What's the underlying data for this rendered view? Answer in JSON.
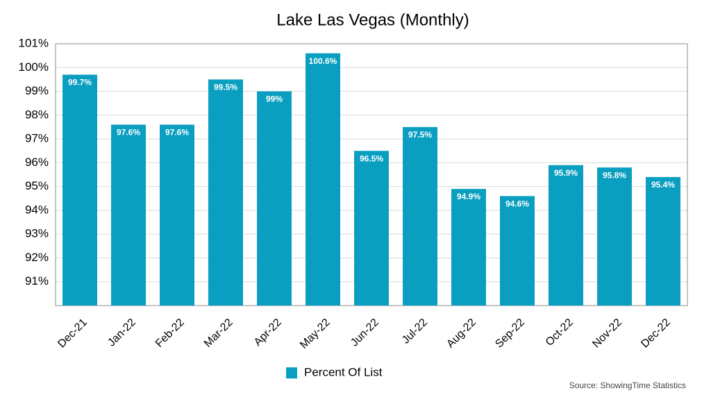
{
  "chart_data": {
    "type": "bar",
    "title": "Lake Las Vegas (Monthly)",
    "categories": [
      "Dec-21",
      "Jan-22",
      "Feb-22",
      "Mar-22",
      "Apr-22",
      "May-22",
      "Jun-22",
      "Jul-22",
      "Aug-22",
      "Sep-22",
      "Oct-22",
      "Nov-22",
      "Dec-22"
    ],
    "series": [
      {
        "name": "Percent Of List",
        "color": "#0a9fc1",
        "values": [
          99.7,
          97.6,
          97.6,
          99.5,
          99,
          100.6,
          96.5,
          97.5,
          94.9,
          94.6,
          95.9,
          95.8,
          95.4
        ],
        "value_labels": [
          "99.7%",
          "97.6%",
          "97.6%",
          "99.5%",
          "99%",
          "100.6%",
          "96.5%",
          "97.5%",
          "94.9%",
          "94.6%",
          "95.9%",
          "95.8%",
          "95.4%"
        ]
      }
    ],
    "ylim": [
      90,
      101
    ],
    "yticks": [
      {
        "value": 91,
        "label": "91%"
      },
      {
        "value": 92,
        "label": "92%"
      },
      {
        "value": 93,
        "label": "93%"
      },
      {
        "value": 94,
        "label": "94%"
      },
      {
        "value": 95,
        "label": "95%"
      },
      {
        "value": 96,
        "label": "96%"
      },
      {
        "value": 97,
        "label": "97%"
      },
      {
        "value": 98,
        "label": "98%"
      },
      {
        "value": 99,
        "label": "99%"
      },
      {
        "value": 100,
        "label": "100%"
      },
      {
        "value": 101,
        "label": "101%"
      }
    ],
    "grid": true,
    "legend": "bottom",
    "source": "Source: ShowingTime Statistics"
  }
}
